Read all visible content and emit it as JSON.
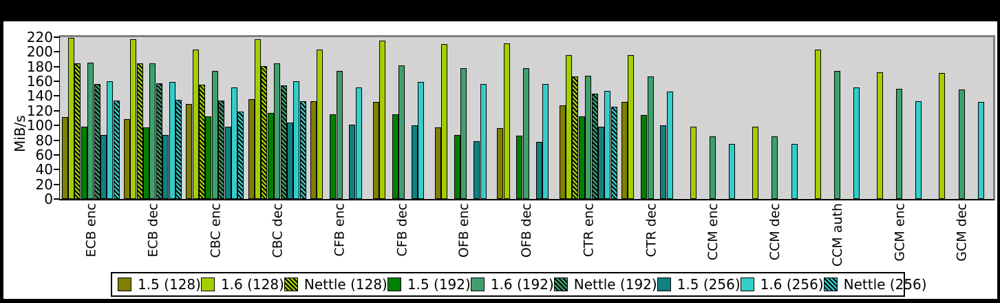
{
  "window": {
    "frame_color": "#000000",
    "canvas_color": "#ffffff"
  },
  "y_axis": {
    "label": "MiB/s",
    "tick_labels": [
      "0",
      "20",
      "40",
      "60",
      "80",
      "100",
      "120",
      "140",
      "160",
      "180",
      "200",
      "220"
    ]
  },
  "chart_data": {
    "type": "bar",
    "title": "",
    "xlabel": "",
    "ylabel": "MiB/s",
    "ylim": [
      0,
      220
    ],
    "ytick_step": 20,
    "grid": false,
    "plot_bg": "#d3d3d3",
    "legend_position": "bottom",
    "categories": [
      "ECB enc",
      "ECB dec",
      "CBC enc",
      "CBC dec",
      "CFB enc",
      "CFB dec",
      "OFB enc",
      "OFB dec",
      "CTR enc",
      "CTR dec",
      "CCM enc",
      "CCM dec",
      "CCM auth",
      "GCM enc",
      "GCM dec"
    ],
    "series": [
      {
        "name": "1.5 (128)",
        "color": "#7f7f00",
        "hatch": false,
        "values": [
          111,
          109,
          129,
          136,
          133,
          132,
          97,
          96,
          127,
          132,
          0,
          0,
          0,
          0,
          0
        ]
      },
      {
        "name": "1.6 (128)",
        "color": "#a4ce00",
        "hatch": false,
        "values": [
          219,
          217,
          203,
          217,
          203,
          215,
          211,
          212,
          196,
          196,
          98,
          98,
          203,
          172,
          171
        ]
      },
      {
        "name": "Nettle (128)",
        "color": "#a4ce00",
        "hatch": true,
        "values": [
          184,
          184,
          155,
          181,
          0,
          0,
          0,
          0,
          167,
          0,
          0,
          0,
          0,
          0,
          0
        ]
      },
      {
        "name": "1.5 (192)",
        "color": "#008000",
        "hatch": false,
        "values": [
          98,
          97,
          112,
          117,
          115,
          115,
          87,
          86,
          112,
          114,
          0,
          0,
          0,
          0,
          0
        ]
      },
      {
        "name": "1.6 (192)",
        "color": "#3fa06e",
        "hatch": false,
        "values": [
          185,
          184,
          174,
          184,
          174,
          182,
          178,
          178,
          168,
          167,
          85,
          85,
          174,
          150,
          149
        ]
      },
      {
        "name": "Nettle (192)",
        "color": "#3fa06e",
        "hatch": true,
        "values": [
          156,
          157,
          134,
          154,
          0,
          0,
          0,
          0,
          143,
          0,
          0,
          0,
          0,
          0,
          0
        ]
      },
      {
        "name": "1.5 (256)",
        "color": "#108080",
        "hatch": false,
        "values": [
          87,
          87,
          98,
          104,
          101,
          100,
          79,
          78,
          98,
          100,
          0,
          0,
          0,
          0,
          0
        ]
      },
      {
        "name": "1.6 (256)",
        "color": "#35cdc8",
        "hatch": false,
        "values": [
          160,
          159,
          152,
          160,
          152,
          159,
          156,
          156,
          147,
          146,
          75,
          75,
          152,
          133,
          132
        ]
      },
      {
        "name": "Nettle (256)",
        "color": "#35cdc8",
        "hatch": true,
        "values": [
          134,
          135,
          119,
          133,
          0,
          0,
          0,
          0,
          125,
          0,
          0,
          0,
          0,
          0,
          0
        ]
      }
    ]
  }
}
